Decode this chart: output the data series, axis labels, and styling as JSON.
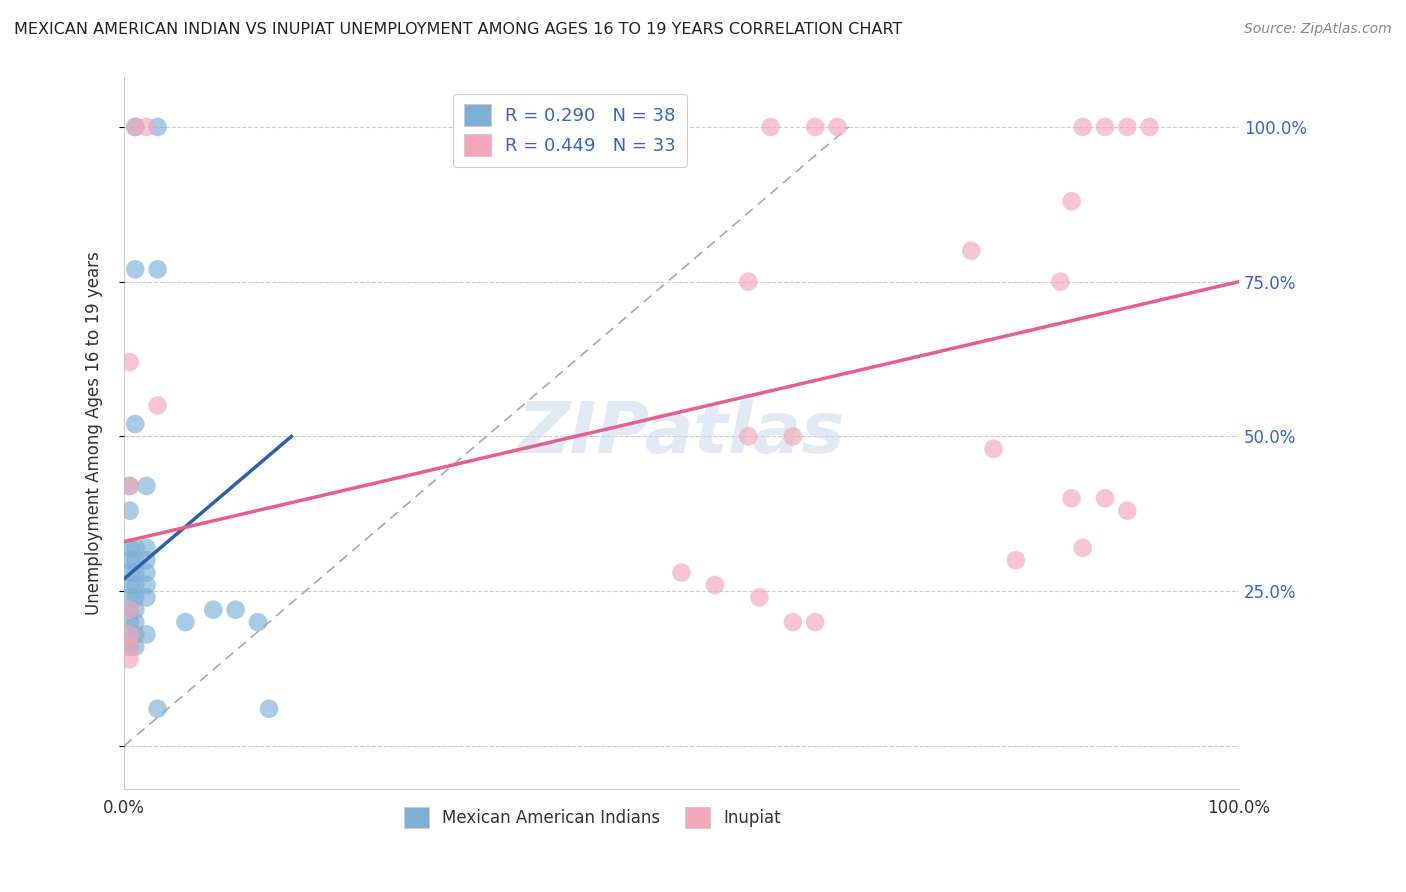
{
  "title": "MEXICAN AMERICAN INDIAN VS INUPIAT UNEMPLOYMENT AMONG AGES 16 TO 19 YEARS CORRELATION CHART",
  "source": "Source: ZipAtlas.com",
  "ylabel": "Unemployment Among Ages 16 to 19 years",
  "watermark": "ZIPatlas",
  "legend_blue_r": "R = 0.290",
  "legend_blue_n": "N = 38",
  "legend_pink_r": "R = 0.449",
  "legend_pink_n": "N = 33",
  "blue_color": "#7bafd4",
  "pink_color": "#f4a7b9",
  "blue_line_color": "#2c5fad",
  "pink_line_color": "#e8608a",
  "blue_dots": [
    [
      0.01,
      1.0
    ],
    [
      0.03,
      1.0
    ],
    [
      0.01,
      0.77
    ],
    [
      0.03,
      0.77
    ],
    [
      0.01,
      0.52
    ],
    [
      0.005,
      0.42
    ],
    [
      0.02,
      0.42
    ],
    [
      0.005,
      0.38
    ],
    [
      0.005,
      0.32
    ],
    [
      0.01,
      0.32
    ],
    [
      0.02,
      0.32
    ],
    [
      0.005,
      0.3
    ],
    [
      0.01,
      0.3
    ],
    [
      0.02,
      0.3
    ],
    [
      0.005,
      0.28
    ],
    [
      0.01,
      0.28
    ],
    [
      0.02,
      0.28
    ],
    [
      0.005,
      0.26
    ],
    [
      0.01,
      0.26
    ],
    [
      0.02,
      0.26
    ],
    [
      0.005,
      0.24
    ],
    [
      0.01,
      0.24
    ],
    [
      0.02,
      0.24
    ],
    [
      0.005,
      0.22
    ],
    [
      0.01,
      0.22
    ],
    [
      0.005,
      0.2
    ],
    [
      0.01,
      0.2
    ],
    [
      0.005,
      0.18
    ],
    [
      0.01,
      0.18
    ],
    [
      0.02,
      0.18
    ],
    [
      0.005,
      0.16
    ],
    [
      0.01,
      0.16
    ],
    [
      0.08,
      0.22
    ],
    [
      0.1,
      0.22
    ],
    [
      0.055,
      0.2
    ],
    [
      0.12,
      0.2
    ],
    [
      0.03,
      0.06
    ],
    [
      0.13,
      0.06
    ]
  ],
  "pink_dots": [
    [
      0.01,
      1.0
    ],
    [
      0.02,
      1.0
    ],
    [
      0.58,
      1.0
    ],
    [
      0.62,
      1.0
    ],
    [
      0.64,
      1.0
    ],
    [
      0.86,
      1.0
    ],
    [
      0.88,
      1.0
    ],
    [
      0.9,
      1.0
    ],
    [
      0.92,
      1.0
    ],
    [
      0.85,
      0.88
    ],
    [
      0.76,
      0.8
    ],
    [
      0.56,
      0.75
    ],
    [
      0.84,
      0.75
    ],
    [
      0.005,
      0.62
    ],
    [
      0.03,
      0.55
    ],
    [
      0.56,
      0.5
    ],
    [
      0.6,
      0.5
    ],
    [
      0.78,
      0.48
    ],
    [
      0.005,
      0.42
    ],
    [
      0.85,
      0.4
    ],
    [
      0.88,
      0.4
    ],
    [
      0.5,
      0.28
    ],
    [
      0.53,
      0.26
    ],
    [
      0.005,
      0.22
    ],
    [
      0.005,
      0.18
    ],
    [
      0.005,
      0.16
    ],
    [
      0.005,
      0.14
    ],
    [
      0.57,
      0.24
    ],
    [
      0.6,
      0.2
    ],
    [
      0.62,
      0.2
    ],
    [
      0.8,
      0.3
    ],
    [
      0.86,
      0.32
    ],
    [
      0.9,
      0.38
    ]
  ],
  "blue_line": {
    "x0": 0.0,
    "x1": 0.15,
    "y0": 0.27,
    "y1": 0.5
  },
  "pink_line": {
    "x0": 0.0,
    "x1": 1.0,
    "y0": 0.33,
    "y1": 0.75
  },
  "diag_line": {
    "x0": 0.0,
    "x1": 0.65,
    "y0": 0.0,
    "y1": 1.0
  },
  "yticks": [
    0.0,
    0.25,
    0.5,
    0.75,
    1.0
  ],
  "ytick_labels": [
    "",
    "25.0%",
    "50.0%",
    "75.0%",
    "100.0%"
  ],
  "xlim": [
    0.0,
    1.0
  ],
  "ylim": [
    -0.07,
    1.08
  ]
}
